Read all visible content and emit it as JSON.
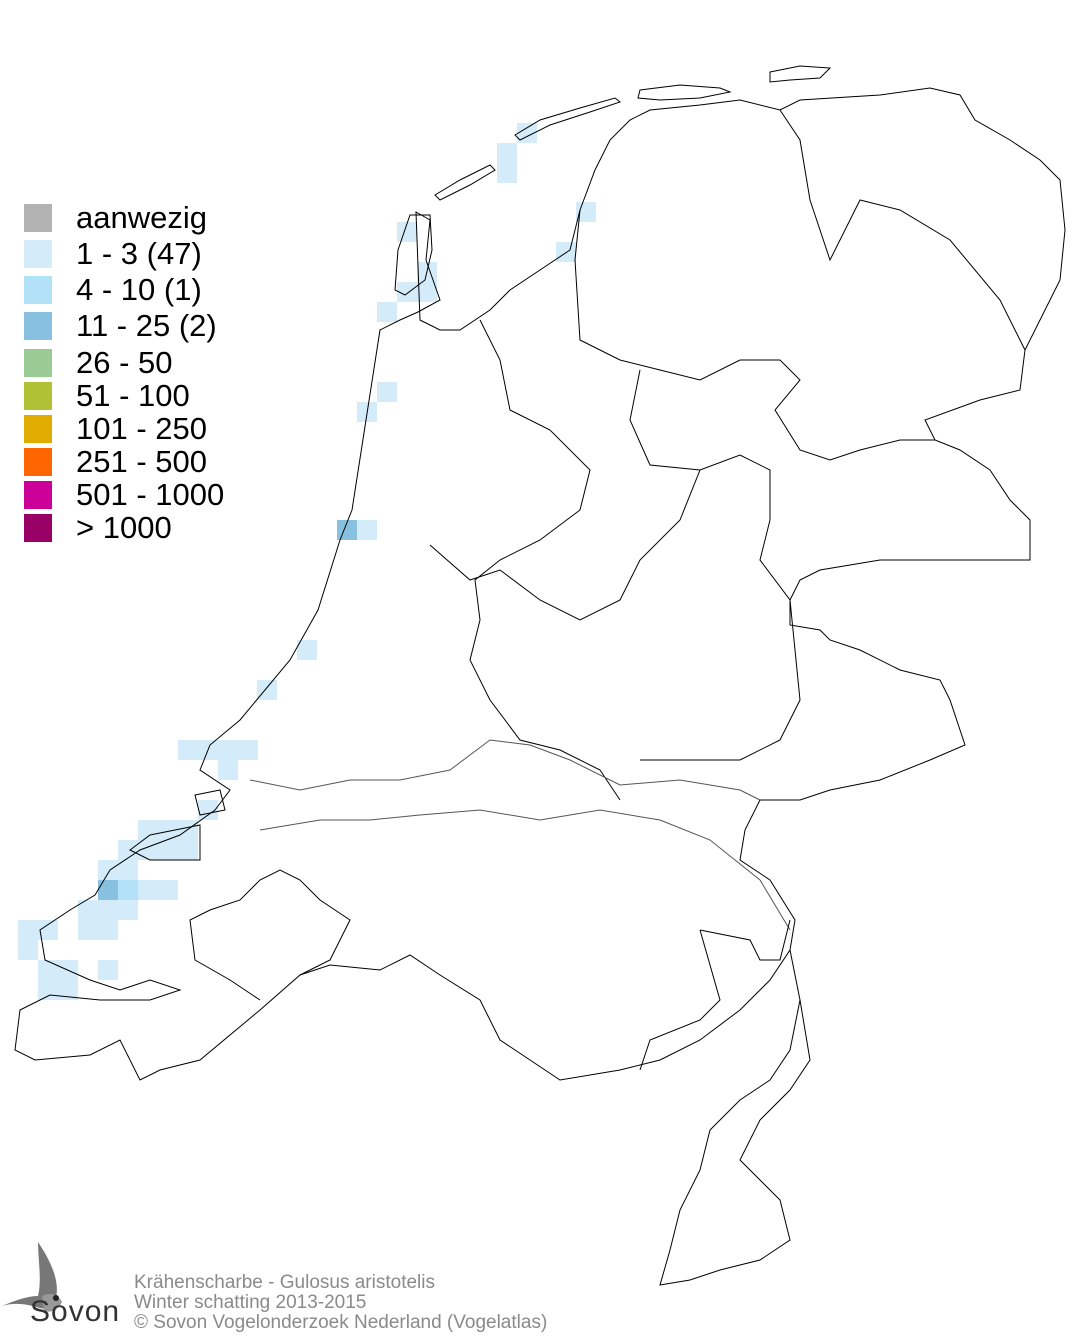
{
  "legend": {
    "items": [
      {
        "label": "aanwezig",
        "color": "#b3b3b3"
      },
      {
        "label": "1 - 3 (47)",
        "color": "#d4ebf9"
      },
      {
        "label": "4 - 10 (1)",
        "color": "#b3e1f8"
      },
      {
        "label": "11 - 25 (2)",
        "color": "#88c1df"
      },
      {
        "label": "26 - 50",
        "color": "#9bcb94"
      },
      {
        "label": "51 - 100",
        "color": "#b1c136"
      },
      {
        "label": "101 - 250",
        "color": "#e0ac00"
      },
      {
        "label": "251 - 500",
        "color": "#ff6600"
      },
      {
        "label": "501 - 1000",
        "color": "#cc0099"
      },
      {
        "label": "> 1000",
        "color": "#990066"
      }
    ]
  },
  "caption": {
    "species": "Krähenscharbe - Gulosus aristotelis",
    "period": "Winter schatting 2013-2015",
    "copyright": "© Sovon Vogelonderzoek Nederland (Vogelatlas)"
  },
  "logo": {
    "text": "Sovon"
  }
}
